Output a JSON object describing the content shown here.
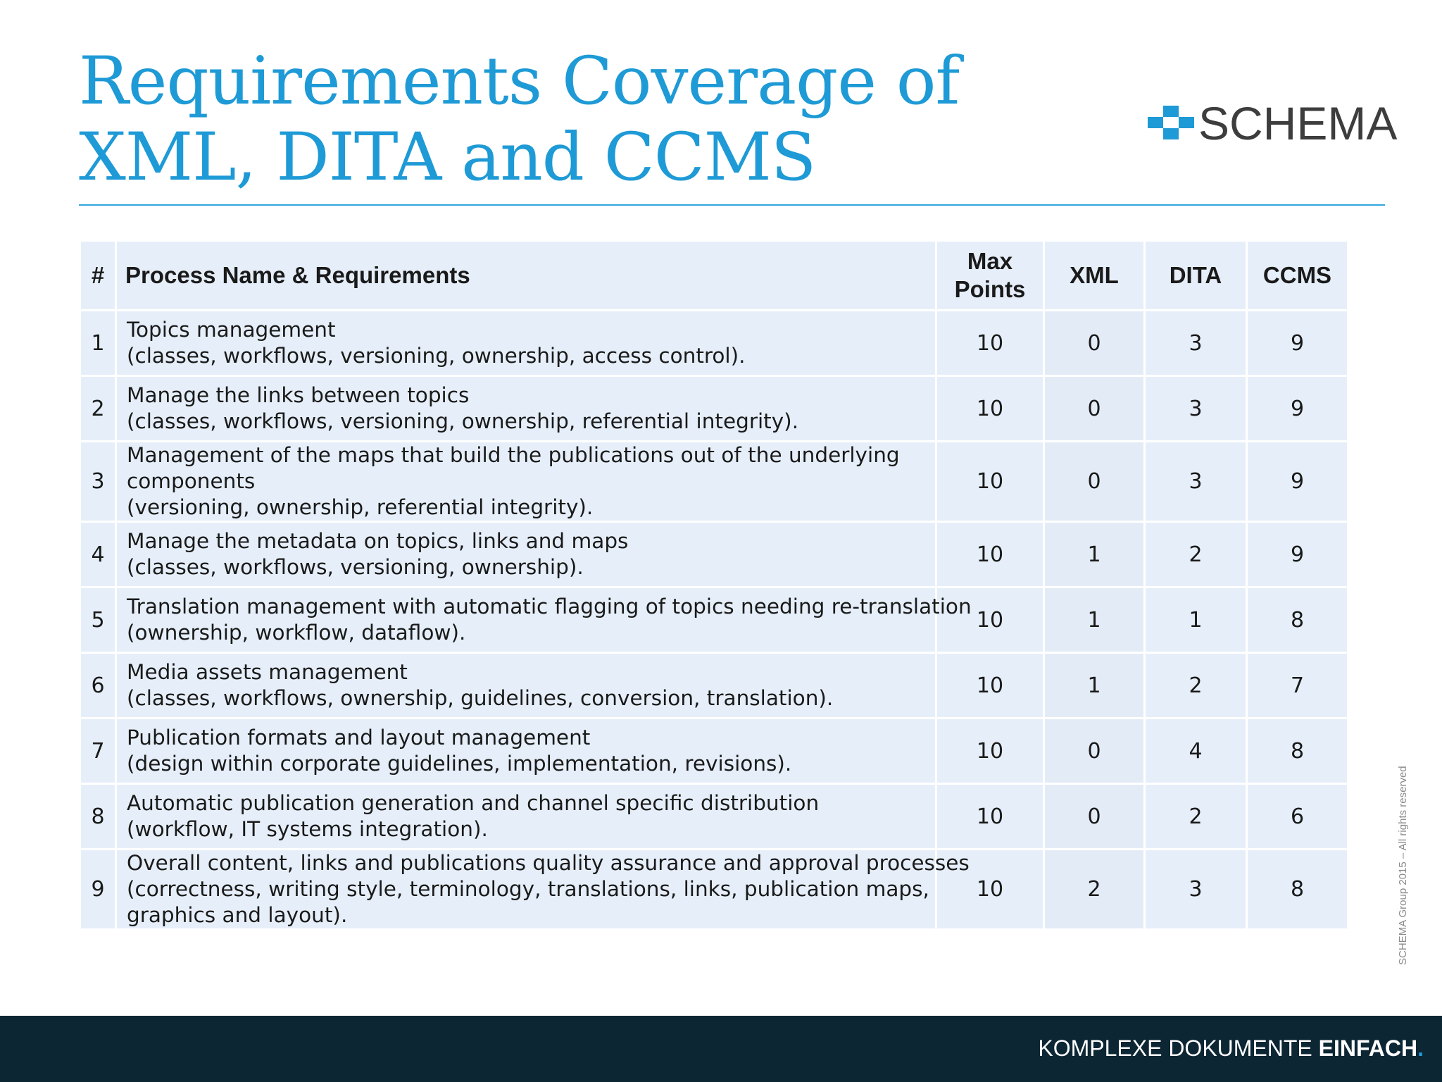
{
  "title": {
    "line1": "Requirements Coverage of",
    "line2": "XML, DITA and CCMS"
  },
  "logo": {
    "text": "SCHEMA",
    "icon": "schema-squares-logo",
    "color": "#1e9ad6"
  },
  "table": {
    "headers": {
      "num": "#",
      "name": "Process Name & Requirements",
      "max_line1": "Max",
      "max_line2": "Points",
      "xml": "XML",
      "dita": "DITA",
      "ccms": "CCMS"
    },
    "rows": [
      {
        "num": "1",
        "lines": [
          "Topics management",
          "(classes, workflows, versioning, ownership, access control)."
        ],
        "max": "10",
        "xml": "0",
        "dita": "3",
        "ccms": "9"
      },
      {
        "num": "2",
        "lines": [
          "Manage the links between topics",
          "(classes, workflows, versioning, ownership, referential integrity)."
        ],
        "max": "10",
        "xml": "0",
        "dita": "3",
        "ccms": "9"
      },
      {
        "num": "3",
        "lines": [
          "Management of the maps that build the publications out of the underlying",
          "components",
          "(versioning, ownership, referential integrity)."
        ],
        "max": "10",
        "xml": "0",
        "dita": "3",
        "ccms": "9"
      },
      {
        "num": "4",
        "lines": [
          "Manage the metadata on topics, links and maps",
          "(classes, workflows, versioning, ownership)."
        ],
        "max": "10",
        "xml": "1",
        "dita": "2",
        "ccms": "9"
      },
      {
        "num": "5",
        "lines": [
          "Translation management with automatic flagging of topics needing re-translation",
          "(ownership, workflow, dataflow)."
        ],
        "max": "10",
        "xml": "1",
        "dita": "1",
        "ccms": "8"
      },
      {
        "num": "6",
        "lines": [
          "Media assets management",
          "(classes, workflows, ownership, guidelines, conversion, translation)."
        ],
        "max": "10",
        "xml": "1",
        "dita": "2",
        "ccms": "7"
      },
      {
        "num": "7",
        "lines": [
          "Publication formats and layout management",
          "(design within corporate guidelines, implementation, revisions)."
        ],
        "max": "10",
        "xml": "0",
        "dita": "4",
        "ccms": "8"
      },
      {
        "num": "8",
        "lines": [
          "Automatic publication generation and channel specific distribution",
          "(workflow, IT systems integration)."
        ],
        "max": "10",
        "xml": "0",
        "dita": "2",
        "ccms": "6"
      },
      {
        "num": "9",
        "lines": [
          "Overall content, links and publications quality assurance and approval processes",
          "(correctness, writing style, terminology, translations, links, publication maps,",
          "graphics and layout)."
        ],
        "max": "10",
        "xml": "2",
        "dita": "3",
        "ccms": "8"
      }
    ]
  },
  "footer": {
    "text_light": "KOMPLEXE DOKUMENTE ",
    "text_bold": "EINFACH",
    "text_dot": "."
  },
  "copyright": "SCHEMA Group 2015 – All rights reserved"
}
